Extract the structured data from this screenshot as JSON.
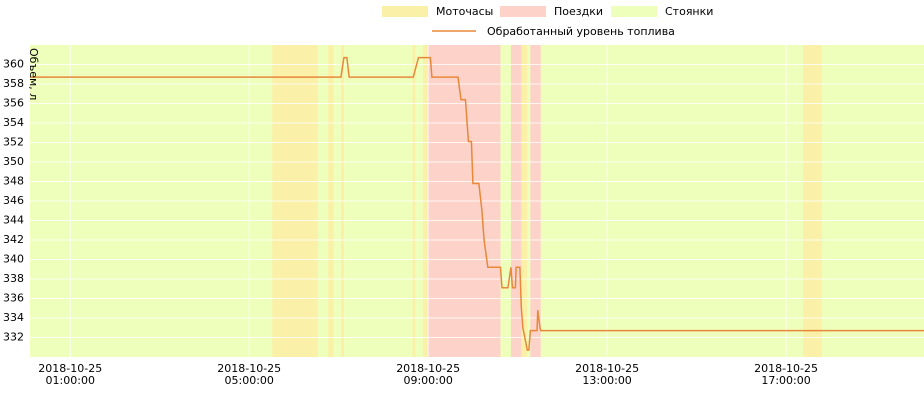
{
  "chart_data": {
    "type": "line",
    "ylabel": "Объем, л",
    "xlim": [
      "2018-10-25 00:06",
      "2018-10-25 20:05"
    ],
    "xticks": [
      {
        "value": "2018-10-25 01:00:00",
        "label": [
          "2018-10-25",
          "01:00:00"
        ]
      },
      {
        "value": "2018-10-25 05:00:00",
        "label": [
          "2018-10-25",
          "05:00:00"
        ]
      },
      {
        "value": "2018-10-25 09:00:00",
        "label": [
          "2018-10-25",
          "09:00:00"
        ]
      },
      {
        "value": "2018-10-25 13:00:00",
        "label": [
          "2018-10-25",
          "13:00:00"
        ]
      },
      {
        "value": "2018-10-25 17:00:00",
        "label": [
          "2018-10-25",
          "17:00:00"
        ]
      }
    ],
    "ylim": [
      330,
      362
    ],
    "yticks": [
      332,
      334,
      336,
      338,
      340,
      342,
      344,
      346,
      348,
      350,
      352,
      354,
      356,
      358,
      360
    ],
    "grid": true,
    "bands": [
      {
        "name": "Стоянки",
        "color": "#eeffbb",
        "ranges": [
          [
            "2018-10-25 00:06",
            "2018-10-25 20:05"
          ]
        ]
      },
      {
        "name": "Моточасы",
        "color": "#faf0a8",
        "ranges": [
          [
            "2018-10-25 05:31",
            "2018-10-25 06:32"
          ],
          [
            "2018-10-25 06:46",
            "2018-10-25 06:53"
          ],
          [
            "2018-10-25 07:03",
            "2018-10-25 07:07"
          ],
          [
            "2018-10-25 08:39",
            "2018-10-25 08:43"
          ],
          [
            "2018-10-25 08:53",
            "2018-10-25 08:59"
          ],
          [
            "2018-10-25 11:05",
            "2018-10-25 11:13"
          ],
          [
            "2018-10-25 17:23",
            "2018-10-25 17:48"
          ]
        ]
      },
      {
        "name": "Поездки",
        "color": "#fdd3c9",
        "ranges": [
          [
            "2018-10-25 08:59",
            "2018-10-25 10:37"
          ],
          [
            "2018-10-25 10:51",
            "2018-10-25 11:05"
          ],
          [
            "2018-10-25 11:17",
            "2018-10-25 11:31"
          ]
        ]
      }
    ],
    "legend_order": [
      1,
      2,
      0
    ],
    "series": [
      {
        "name": "Обработанный уровень топлива",
        "color": "#e8883a",
        "x": [
          "2018-10-25 00:06",
          "2018-10-25 07:03",
          "2018-10-25 07:07",
          "2018-10-25 07:11",
          "2018-10-25 07:14",
          "2018-10-25 08:40",
          "2018-10-25 08:47",
          "2018-10-25 09:03",
          "2018-10-25 09:05",
          "2018-10-25 09:40",
          "2018-10-25 09:44",
          "2018-10-25 09:50",
          "2018-10-25 09:54",
          "2018-10-25 09:58",
          "2018-10-25 10:00",
          "2018-10-25 10:08",
          "2018-10-25 10:12",
          "2018-10-25 10:15",
          "2018-10-25 10:20",
          "2018-10-25 10:37",
          "2018-10-25 10:39",
          "2018-10-25 10:47",
          "2018-10-25 10:51",
          "2018-10-25 10:53",
          "2018-10-25 10:57",
          "2018-10-25 10:58",
          "2018-10-25 11:03",
          "2018-10-25 11:05",
          "2018-10-25 11:07",
          "2018-10-25 11:13",
          "2018-10-25 11:15",
          "2018-10-25 11:17",
          "2018-10-25 11:26",
          "2018-10-25 11:27",
          "2018-10-25 11:30",
          "2018-10-25 11:31",
          "2018-10-25 20:05"
        ],
        "values": [
          358.7,
          358.7,
          360.7,
          360.7,
          358.7,
          358.7,
          360.7,
          360.7,
          358.7,
          358.7,
          356.4,
          356.4,
          352.1,
          352.1,
          347.8,
          347.8,
          345.1,
          342,
          339.2,
          339.2,
          337.1,
          337.1,
          339.2,
          337.1,
          337.1,
          339.2,
          339.2,
          335,
          333,
          330.7,
          330.7,
          332.7,
          332.7,
          334.8,
          333,
          332.7,
          332.7
        ]
      }
    ]
  }
}
